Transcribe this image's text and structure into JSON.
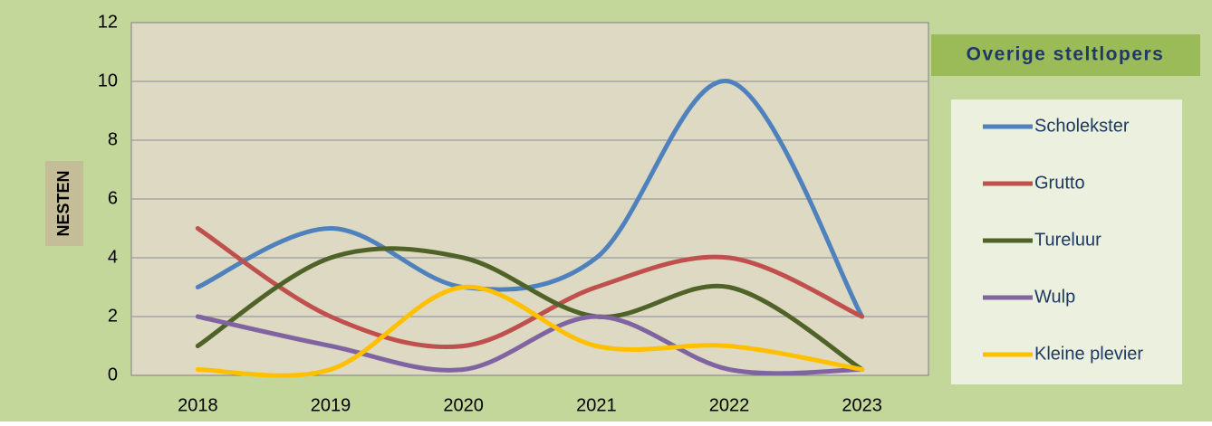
{
  "chart_data": {
    "type": "line",
    "title": "Overige steltlopers",
    "y_label": "NESTEN",
    "categories": [
      "2018",
      "2019",
      "2020",
      "2021",
      "2022",
      "2023"
    ],
    "series": [
      {
        "name": "Scholekster",
        "color": "#4f81bd",
        "values": [
          3,
          5,
          3,
          4,
          10,
          2
        ]
      },
      {
        "name": "Grutto",
        "color": "#c0504d",
        "values": [
          5,
          2,
          1,
          3,
          4,
          2
        ]
      },
      {
        "name": "Tureluur",
        "color": "#4f6228",
        "values": [
          1,
          4,
          4,
          2,
          3,
          0.2
        ]
      },
      {
        "name": "Wulp",
        "color": "#8064a2",
        "values": [
          2,
          1,
          0.2,
          2,
          0.2,
          0.2
        ]
      },
      {
        "name": "Kleine plevier",
        "color": "#ffc000",
        "values": [
          0.2,
          0.2,
          3,
          1,
          1,
          0.2
        ]
      }
    ],
    "ylim": [
      0,
      12
    ],
    "yticks": [
      0,
      2,
      4,
      6,
      8,
      10,
      12
    ],
    "grid": true,
    "smooth": true,
    "legend": "right"
  }
}
